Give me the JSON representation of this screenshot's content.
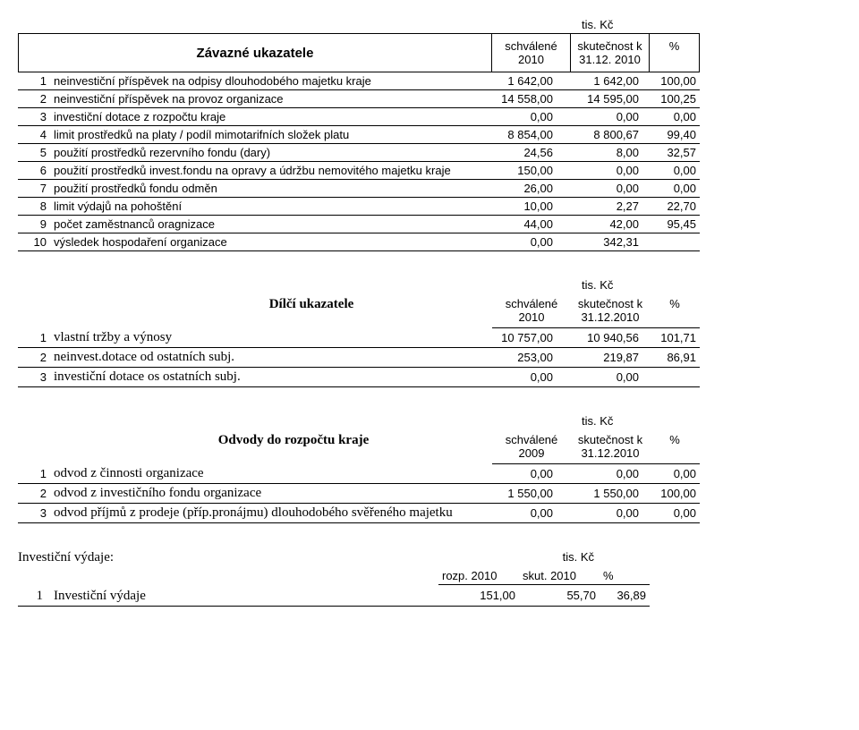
{
  "unit": "tis. Kč",
  "t1": {
    "title": "Závazné ukazatele",
    "h1": "schválené\n2010",
    "h2": "skutečnost k\n31.12. 2010",
    "h3": "%",
    "rows": [
      {
        "n": "1",
        "d": "neinvestiční příspěvek na odpisy dlouhodobého majetku kraje",
        "v1": "1 642,00",
        "v2": "1 642,00",
        "p": "100,00"
      },
      {
        "n": "2",
        "d": "neinvestiční příspěvek na provoz organizace",
        "v1": "14 558,00",
        "v2": "14 595,00",
        "p": "100,25"
      },
      {
        "n": "3",
        "d": "investiční dotace z rozpočtu kraje",
        "v1": "0,00",
        "v2": "0,00",
        "p": "0,00"
      },
      {
        "n": "4",
        "d": "limit prostředků na platy / podíl mimotarifních složek platu",
        "v1": "8 854,00",
        "v2": "8 800,67",
        "p": "99,40"
      },
      {
        "n": "5",
        "d": "použití prostředků rezervního fondu (dary)",
        "v1": "24,56",
        "v2": "8,00",
        "p": "32,57"
      },
      {
        "n": "6",
        "d": "použití prostředků invest.fondu na opravy a údržbu nemovitého majetku kraje",
        "v1": "150,00",
        "v2": "0,00",
        "p": "0,00"
      },
      {
        "n": "7",
        "d": "použití prostředků fondu odměn",
        "v1": "26,00",
        "v2": "0,00",
        "p": "0,00"
      },
      {
        "n": "8",
        "d": "limit výdajů na pohoštění",
        "v1": "10,00",
        "v2": "2,27",
        "p": "22,70"
      },
      {
        "n": "9",
        "d": "počet zaměstnanců oragnizace",
        "v1": "44,00",
        "v2": "42,00",
        "p": "95,45"
      },
      {
        "n": "10",
        "d": "výsledek hospodaření organizace",
        "v1": "0,00",
        "v2": "342,31",
        "p": ""
      }
    ]
  },
  "t2": {
    "title": "Dílčí ukazatele",
    "h1": "schválené\n2010",
    "h2": "skutečnost k\n31.12.2010",
    "h3": "%",
    "rows": [
      {
        "n": "1",
        "d": "vlastní tržby a výnosy",
        "v1": "10 757,00",
        "v2": "10 940,56",
        "p": "101,71"
      },
      {
        "n": "2",
        "d": "neinvest.dotace od ostatních subj.",
        "v1": "253,00",
        "v2": "219,87",
        "p": "86,91"
      },
      {
        "n": "3",
        "d": "investiční dotace os ostatních subj.",
        "v1": "0,00",
        "v2": "0,00",
        "p": ""
      }
    ]
  },
  "t3": {
    "title": "Odvody do rozpočtu kraje",
    "h1": "schválené\n2009",
    "h2": "skutečnost k\n31.12.2010",
    "h3": "%",
    "rows": [
      {
        "n": "1",
        "d": "odvod z činnosti organizace",
        "v1": "0,00",
        "v2": "0,00",
        "p": "0,00"
      },
      {
        "n": "2",
        "d": "odvod z investičního fondu organizace",
        "v1": "1 550,00",
        "v2": "1 550,00",
        "p": "100,00"
      },
      {
        "n": "3",
        "d": "odvod příjmů z prodeje (příp.pronájmu) dlouhodobého svěřeného majetku",
        "v1": "0,00",
        "v2": "0,00",
        "p": "0,00"
      }
    ]
  },
  "t4": {
    "title": "Investiční výdaje:",
    "h1": "rozp. 2010",
    "h2": "skut. 2010",
    "h3": "%",
    "rows": [
      {
        "n": "1",
        "d": "Investiční výdaje",
        "v1": "151,00",
        "v2": "55,70",
        "p": "36,89"
      }
    ]
  }
}
